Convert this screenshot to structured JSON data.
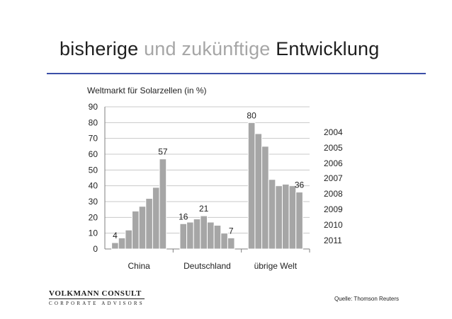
{
  "slide": {
    "title_part1": "bisherige",
    "title_part2": "und zukünftige",
    "title_part3": "Entwicklung",
    "logo_main": "VOLKMANN CONSULT",
    "logo_sub": "CORPORATE ADVISORS",
    "source": "Quelle: Thomson Reuters",
    "accent_color": "#3b4fa8"
  },
  "chart_data": {
    "type": "bar",
    "title": "Weltmarkt für Solarzellen (in %)",
    "categories": [
      "China",
      "Deutschland",
      "übrige Welt"
    ],
    "years": [
      "2004",
      "2005",
      "2006",
      "2007",
      "2008",
      "2009",
      "2010",
      "2011"
    ],
    "series_by_region": [
      {
        "region": "China",
        "values": [
          4,
          7,
          12,
          24,
          27,
          32,
          39,
          57
        ]
      },
      {
        "region": "Deutschland",
        "values": [
          16,
          17,
          19,
          21,
          17,
          15,
          10,
          7
        ]
      },
      {
        "region": "übrige Welt",
        "values": [
          80,
          73,
          65,
          44,
          40,
          41,
          40,
          36
        ]
      }
    ],
    "data_labels": [
      {
        "region_index": 0,
        "bar_index": 0,
        "text": "4"
      },
      {
        "region_index": 0,
        "bar_index": 7,
        "text": "57"
      },
      {
        "region_index": 1,
        "bar_index": 0,
        "text": "16"
      },
      {
        "region_index": 1,
        "bar_index": 3,
        "text": "21"
      },
      {
        "region_index": 1,
        "bar_index": 7,
        "text": "7"
      },
      {
        "region_index": 2,
        "bar_index": 0,
        "text": "80"
      },
      {
        "region_index": 2,
        "bar_index": 7,
        "text": "36"
      }
    ],
    "yticks": [
      0,
      10,
      20,
      30,
      40,
      50,
      60,
      70,
      80,
      90
    ],
    "ylim": [
      0,
      90
    ],
    "bar_color": "#a6a6a6",
    "bar_stroke": "#ffffff",
    "grid": true,
    "legend_position": "right"
  }
}
